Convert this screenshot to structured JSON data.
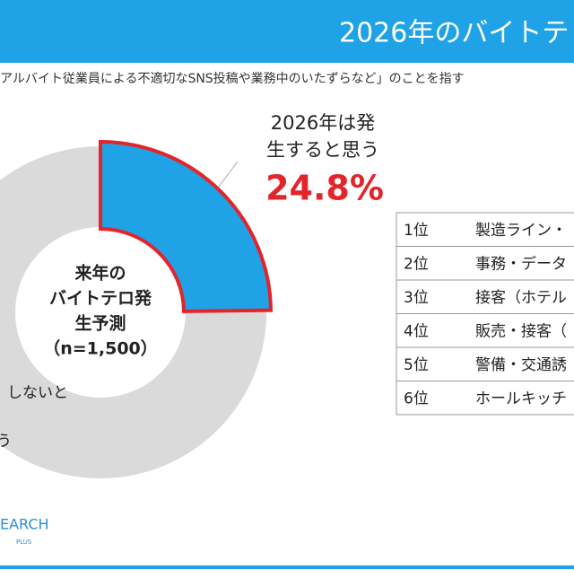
{
  "header": {
    "title": "2026年のバイトテ"
  },
  "note": "アルバイト従業員による不適切なSNS投稿や業務中のいたずらなど」のことを指す",
  "chart_data": {
    "type": "donut",
    "center_label": [
      "来年の",
      "バイトテロ発",
      "生予測",
      "（n=1,500）"
    ],
    "values": [
      24.8,
      75.2
    ],
    "value_labels": [
      "24.8%",
      null
    ],
    "labels": [
      [
        "2026年は発",
        "生すると思う"
      ],
      [
        "しないと",
        "う"
      ]
    ],
    "colors": [
      "#1fa3e6",
      "#dadada"
    ],
    "highlight_color": "#e3242b"
  },
  "table": {
    "rows": [
      [
        "1位",
        "製造ライン・"
      ],
      [
        "2位",
        "事務・データ"
      ],
      [
        "3位",
        "接客（ホテル"
      ],
      [
        "4位",
        "販売・接客（"
      ],
      [
        "5位",
        "警備・交通誘"
      ],
      [
        "6位",
        "ホールキッチ"
      ]
    ]
  },
  "logo": {
    "text": "EARCH",
    "sub": "PLUS"
  }
}
